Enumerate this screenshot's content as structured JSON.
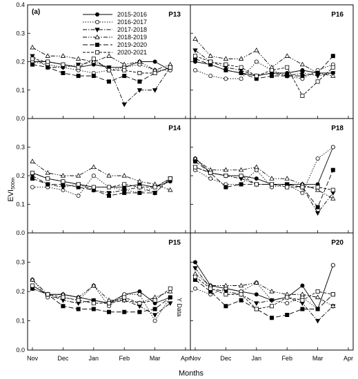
{
  "figure": {
    "panel_tag": "(a)",
    "xlabel": "Months",
    "ylabel_main": "EVI",
    "ylabel_sub": "500m",
    "annotation": "Y Data"
  },
  "legend": [
    {
      "name": "2015-2016",
      "dash": "",
      "marker": "circle",
      "fill": "#000"
    },
    {
      "name": "2016-2017",
      "dash": "1.5,2",
      "marker": "circle",
      "fill": "#fff"
    },
    {
      "name": "2017-2018",
      "dash": "6,2,1.5,2",
      "marker": "triangle-down",
      "fill": "#000"
    },
    {
      "name": "2018-2019",
      "dash": "6,2,1.5,2,1.5,2",
      "marker": "triangle-up",
      "fill": "#fff"
    },
    {
      "name": "2019-2020",
      "dash": "7,3",
      "marker": "square",
      "fill": "#000"
    },
    {
      "name": "2020-2021",
      "dash": "4,2",
      "marker": "square",
      "fill": "#fff"
    }
  ],
  "chart_data": {
    "type": "line",
    "x_ticks": [
      "Nov",
      "Dec",
      "Jan",
      "Feb",
      "Mar",
      "Apr"
    ],
    "y_ticks": [
      "0.0",
      "0.1",
      "0.2",
      "0.3",
      "0.4"
    ],
    "ylim": [
      0,
      0.4
    ],
    "xlim": [
      0,
      5
    ],
    "x_months": [
      0,
      0.5,
      1,
      1.5,
      2,
      2.5,
      3,
      3.5,
      4,
      4.5
    ],
    "panels": [
      {
        "name": "P13",
        "series": [
          [
            0.2,
            0.2,
            0.19,
            0.18,
            0.19,
            0.18,
            0.18,
            0.2,
            0.2,
            0.17
          ],
          [
            0.2,
            0.19,
            0.18,
            0.17,
            0.16,
            0.17,
            0.18,
            0.19,
            0.17,
            0.17
          ],
          [
            0.22,
            0.18,
            0.18,
            0.19,
            0.2,
            0.18,
            0.05,
            0.1,
            0.1,
            0.18
          ],
          [
            0.25,
            0.22,
            0.22,
            0.21,
            0.2,
            0.22,
            0.19,
            0.2,
            0.17,
            0.19
          ],
          [
            0.19,
            0.18,
            0.16,
            0.15,
            0.15,
            0.13,
            0.15,
            0.13,
            0.16,
            0.18
          ],
          [
            0.21,
            0.2,
            0.19,
            0.18,
            0.21,
            0.17,
            0.17,
            0.16,
            0.16,
            0.18
          ]
        ]
      },
      {
        "name": "P16",
        "series": [
          [
            0.2,
            0.19,
            0.17,
            0.16,
            0.15,
            0.16,
            0.16,
            0.17,
            0.16,
            0.16
          ],
          [
            0.17,
            0.15,
            0.14,
            0.14,
            0.2,
            0.17,
            0.15,
            0.14,
            0.17,
            0.19
          ],
          [
            0.24,
            0.2,
            0.18,
            0.17,
            0.15,
            0.16,
            0.15,
            0.16,
            0.15,
            0.16
          ],
          [
            0.28,
            0.22,
            0.21,
            0.21,
            0.24,
            0.18,
            0.22,
            0.19,
            0.16,
            0.15
          ],
          [
            0.21,
            0.19,
            0.17,
            0.16,
            0.14,
            0.15,
            0.15,
            0.15,
            0.16,
            0.22
          ],
          [
            0.22,
            0.2,
            0.19,
            0.18,
            0.15,
            0.17,
            0.18,
            0.08,
            0.13,
            0.18
          ]
        ]
      },
      {
        "name": "P14",
        "series": [
          [
            0.21,
            0.19,
            0.18,
            0.17,
            0.16,
            0.16,
            0.16,
            0.17,
            0.16,
            0.18
          ],
          [
            0.16,
            0.16,
            0.15,
            0.13,
            0.2,
            0.16,
            0.15,
            0.14,
            0.16,
            0.19
          ],
          [
            0.2,
            0.17,
            0.16,
            0.17,
            0.15,
            0.14,
            0.15,
            0.16,
            0.14,
            0.19
          ],
          [
            0.25,
            0.21,
            0.2,
            0.2,
            0.23,
            0.2,
            0.2,
            0.18,
            0.17,
            0.15
          ],
          [
            0.19,
            0.17,
            0.17,
            0.16,
            0.15,
            0.13,
            0.14,
            0.14,
            0.14,
            0.19
          ],
          [
            0.21,
            0.19,
            0.18,
            0.17,
            0.16,
            0.16,
            0.17,
            0.16,
            0.16,
            0.19
          ]
        ]
      },
      {
        "name": "P18",
        "series": [
          [
            0.26,
            0.21,
            0.2,
            0.2,
            0.19,
            0.17,
            0.17,
            0.17,
            0.17,
            0.3
          ],
          [
            0.22,
            0.19,
            0.17,
            0.17,
            0.22,
            0.16,
            0.17,
            0.14,
            0.26,
            0.3
          ],
          [
            0.23,
            0.21,
            0.2,
            0.19,
            0.17,
            0.17,
            0.17,
            0.16,
            0.07,
            0.14
          ],
          [
            0.26,
            0.22,
            0.22,
            0.22,
            0.23,
            0.19,
            0.19,
            0.17,
            0.15,
            0.12
          ],
          [
            0.25,
            0.21,
            0.16,
            0.17,
            0.17,
            0.17,
            0.17,
            0.16,
            0.09,
            0.22
          ],
          [
            0.23,
            0.21,
            0.2,
            0.2,
            0.17,
            0.17,
            0.16,
            0.16,
            0.16,
            0.15
          ]
        ]
      },
      {
        "name": "P15",
        "series": [
          [
            0.22,
            0.19,
            0.19,
            0.18,
            0.17,
            0.16,
            0.19,
            0.2,
            0.16,
            0.18
          ],
          [
            0.24,
            0.18,
            0.18,
            0.17,
            0.22,
            0.15,
            0.19,
            0.19,
            0.1,
            0.18
          ],
          [
            0.21,
            0.19,
            0.17,
            0.16,
            0.17,
            0.16,
            0.17,
            0.15,
            0.12,
            0.16
          ],
          [
            0.24,
            0.19,
            0.19,
            0.18,
            0.22,
            0.17,
            0.17,
            0.16,
            0.18,
            0.2
          ],
          [
            0.21,
            0.19,
            0.15,
            0.14,
            0.14,
            0.13,
            0.13,
            0.13,
            0.14,
            0.18
          ],
          [
            0.22,
            0.19,
            0.18,
            0.17,
            0.16,
            0.16,
            0.18,
            0.16,
            0.17,
            0.21
          ]
        ]
      },
      {
        "name": "P20",
        "series": [
          [
            0.3,
            0.22,
            0.21,
            0.2,
            0.19,
            0.17,
            0.18,
            0.22,
            0.14,
            0.29
          ],
          [
            0.21,
            0.19,
            0.21,
            0.2,
            0.23,
            0.17,
            0.16,
            0.18,
            0.14,
            0.29
          ],
          [
            0.28,
            0.21,
            0.2,
            0.19,
            0.16,
            0.17,
            0.18,
            0.16,
            0.1,
            0.15
          ],
          [
            0.26,
            0.22,
            0.22,
            0.22,
            0.23,
            0.2,
            0.19,
            0.19,
            0.18,
            0.15
          ],
          [
            0.24,
            0.2,
            0.15,
            0.17,
            0.14,
            0.11,
            0.12,
            0.14,
            0.14,
            0.19
          ],
          [
            0.25,
            0.21,
            0.19,
            0.19,
            0.14,
            0.15,
            0.18,
            0.17,
            0.2,
            0.19
          ]
        ]
      }
    ]
  }
}
